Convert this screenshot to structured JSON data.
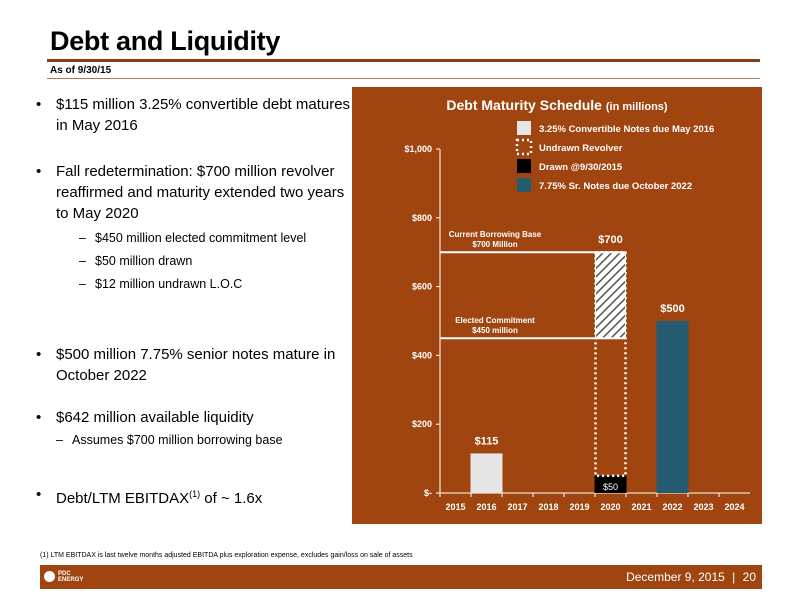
{
  "slide": {
    "title": "Debt and Liquidity",
    "subtitle": "As of 9/30/15",
    "bullets": [
      "$115 million 3.25% convertible debt matures in May 2016",
      "Fall redetermination: $700 million revolver reaffirmed and maturity extended two years to May 2020",
      "$500 million 7.75% senior notes mature in October 2022",
      "$642 million available liquidity",
      "Debt/LTM EBITDAX"
    ],
    "bullet_sup": "(1)",
    "bullet_tail": " of ~ 1.6x",
    "sub_bullets": [
      "$450 million elected commitment level",
      "$50 million drawn",
      "$12 million undrawn L.O.C",
      "Assumes $700 million borrowing base"
    ],
    "footnote": "(1)     LTM EBITDAX is last twelve months adjusted EBITDA plus exploration expense, excludes gain/loss on sale of assets",
    "footer": {
      "logo_line1": "PDC",
      "logo_line2": "ENERGY",
      "date": "December 9, 2015",
      "separator": "|",
      "page": "20"
    },
    "colors": {
      "brand": "#a0450f",
      "convertible": "#e6e6e6",
      "senior_notes": "#255b6e",
      "drawn": "#000000"
    }
  },
  "chart_data": {
    "type": "bar",
    "title": "Debt Maturity Schedule",
    "title_suffix": "(in millions)",
    "categories": [
      "2015",
      "2016",
      "2017",
      "2018",
      "2019",
      "2020",
      "2021",
      "2022",
      "2023",
      "2024"
    ],
    "ylim": [
      0,
      1000
    ],
    "yticks": [
      0,
      200,
      400,
      600,
      800,
      1000
    ],
    "ytick_labels": [
      "$-",
      "$200",
      "$400",
      "$600",
      "$800",
      "$1,000"
    ],
    "legend_position": "top-right",
    "series": [
      {
        "name": "3.25% Convertible Notes due May 2016",
        "style": "solid-light",
        "values": [
          0,
          115,
          0,
          0,
          0,
          0,
          0,
          0,
          0,
          0
        ]
      },
      {
        "name": "Undrawn Revolver",
        "style": "dotted-outline",
        "values": [
          0,
          0,
          0,
          0,
          0,
          650,
          0,
          0,
          0,
          0
        ]
      },
      {
        "name": "Drawn @9/30/2015",
        "style": "solid-black",
        "values": [
          0,
          0,
          0,
          0,
          0,
          50,
          0,
          0,
          0,
          0
        ]
      },
      {
        "name": "7.75% Sr. Notes due October 2022",
        "style": "solid-teal",
        "values": [
          0,
          0,
          0,
          0,
          0,
          0,
          0,
          500,
          0,
          0
        ]
      }
    ],
    "hatched_range": {
      "category": "2020",
      "from": 450,
      "to": 700
    },
    "data_labels": [
      {
        "category": "2016",
        "value": 115,
        "text": "$115"
      },
      {
        "category": "2020",
        "value": 700,
        "text": "$700"
      },
      {
        "category": "2020",
        "value": 50,
        "text": "$50",
        "inside": true
      },
      {
        "category": "2022",
        "value": 500,
        "text": "$500"
      }
    ],
    "reference_lines": [
      {
        "value": 700,
        "label1": "Current Borrowing Base",
        "label2": "$700 Million"
      },
      {
        "value": 450,
        "label1": "Elected Commitment",
        "label2": "$450 million"
      }
    ]
  }
}
